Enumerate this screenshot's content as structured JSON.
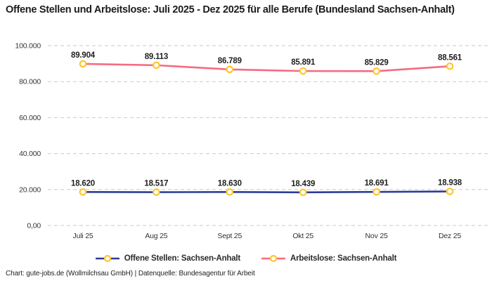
{
  "chart_data": {
    "type": "line",
    "title": "Offene Stellen und Arbeitslose: Juli 2025 - Dez 2025 für alle Berufe (Bundesland Sachsen-Anhalt)",
    "categories": [
      "Juli 25",
      "Aug 25",
      "Sept 25",
      "Okt 25",
      "Nov 25",
      "Dez 25"
    ],
    "series": [
      {
        "name": "Offene Stellen: Sachsen-Anhalt",
        "values": [
          18620,
          18517,
          18630,
          18439,
          18691,
          18938
        ],
        "labels": [
          "18.620",
          "18.517",
          "18.630",
          "18.439",
          "18.691",
          "18.938"
        ],
        "color": "#2b3d98"
      },
      {
        "name": "Arbeitslose: Sachsen-Anhalt",
        "values": [
          89904,
          89113,
          86789,
          85891,
          85829,
          88561
        ],
        "labels": [
          "89.904",
          "89.113",
          "86.789",
          "85.891",
          "85.829",
          "88.561"
        ],
        "color": "#f56b81"
      }
    ],
    "y_ticks": [
      {
        "value": 0,
        "label": "0,00"
      },
      {
        "value": 20000,
        "label": "20.000"
      },
      {
        "value": 40000,
        "label": "40.000"
      },
      {
        "value": 60000,
        "label": "60.000"
      },
      {
        "value": 80000,
        "label": "80.000"
      },
      {
        "value": 100000,
        "label": "100.000"
      }
    ],
    "ylim": [
      0,
      100000
    ],
    "xlabel": "",
    "ylabel": "",
    "grid": "horizontal-dashed",
    "legend_position": "bottom"
  },
  "colors": {
    "marker_ring": "#ffc62b",
    "marker_fill": "#ffffff",
    "gridline": "#c9c9c9",
    "axis_text": "#333333",
    "data_label": "#1f1f1f"
  },
  "footer": {
    "text": "Chart: gute-jobs.de (Wollmilchsau GmbH) | Datenquelle: Bundesagentur für Arbeit"
  }
}
